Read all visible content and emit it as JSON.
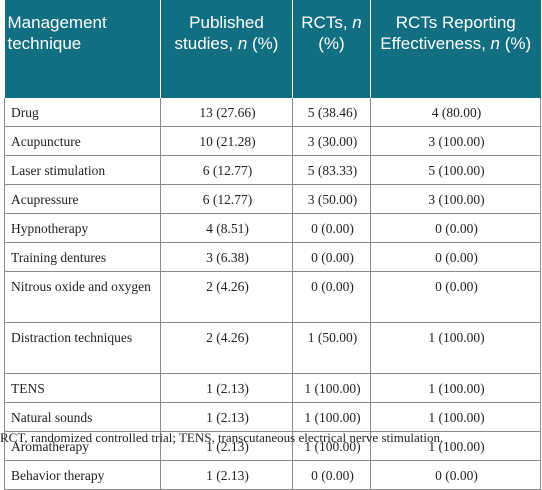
{
  "header": {
    "col1": "Management technique",
    "col2_main": "Published studies, ",
    "col2_n": "n",
    "col2_tail": " (%)",
    "col3_main": "RCTs, ",
    "col3_n": "n",
    "col3_tail": " (%)",
    "col4_main": "RCTs Reporting Effectiveness, ",
    "col4_n": "n",
    "col4_tail": " (%)"
  },
  "rows": [
    {
      "technique": "Drug",
      "published": "13 (27.66)",
      "rcts": "5 (38.46)",
      "effective": "4 (80.00)"
    },
    {
      "technique": "Acupuncture",
      "published": "10 (21.28)",
      "rcts": "3 (30.00)",
      "effective": "3 (100.00)"
    },
    {
      "technique": "Laser stimulation",
      "published": "6 (12.77)",
      "rcts": "5 (83.33)",
      "effective": "5 (100.00)"
    },
    {
      "technique": "Acupressure",
      "published": "6 (12.77)",
      "rcts": "3 (50.00)",
      "effective": "3 (100.00)"
    },
    {
      "technique": "Hypnotherapy",
      "published": "4 (8.51)",
      "rcts": "0 (0.00)",
      "effective": "0 (0.00)"
    },
    {
      "technique": "Training dentures",
      "published": "3 (6.38)",
      "rcts": "0 (0.00)",
      "effective": "0 (0.00)"
    },
    {
      "technique": "Nitrous oxide and oxygen",
      "published": "2 (4.26)",
      "rcts": "0 (0.00)",
      "effective": "0 (0.00)"
    },
    {
      "technique": "Distraction techniques",
      "published": "2 (4.26)",
      "rcts": "1 (50.00)",
      "effective": "1 (100.00)"
    },
    {
      "technique": "TENS",
      "published": "1 (2.13)",
      "rcts": "1 (100.00)",
      "effective": "1 (100.00)"
    },
    {
      "technique": "Natural sounds",
      "published": "1 (2.13)",
      "rcts": "1 (100.00)",
      "effective": "1 (100.00)"
    },
    {
      "technique": "Aromatherapy",
      "published": "1 (2.13)",
      "rcts": "1 (100.00)",
      "effective": "1 (100.00)"
    },
    {
      "technique": "Behavior therapy",
      "published": "1 (2.13)",
      "rcts": "0 (0.00)",
      "effective": "0 (0.00)"
    }
  ],
  "footnote": "RCT, randomized controlled trial; TENS, transcutaneous electrical nerve stimulation.",
  "colors": {
    "header_bg": "#126e81",
    "header_text": "#ffffff",
    "border": "#8a8a8a"
  }
}
